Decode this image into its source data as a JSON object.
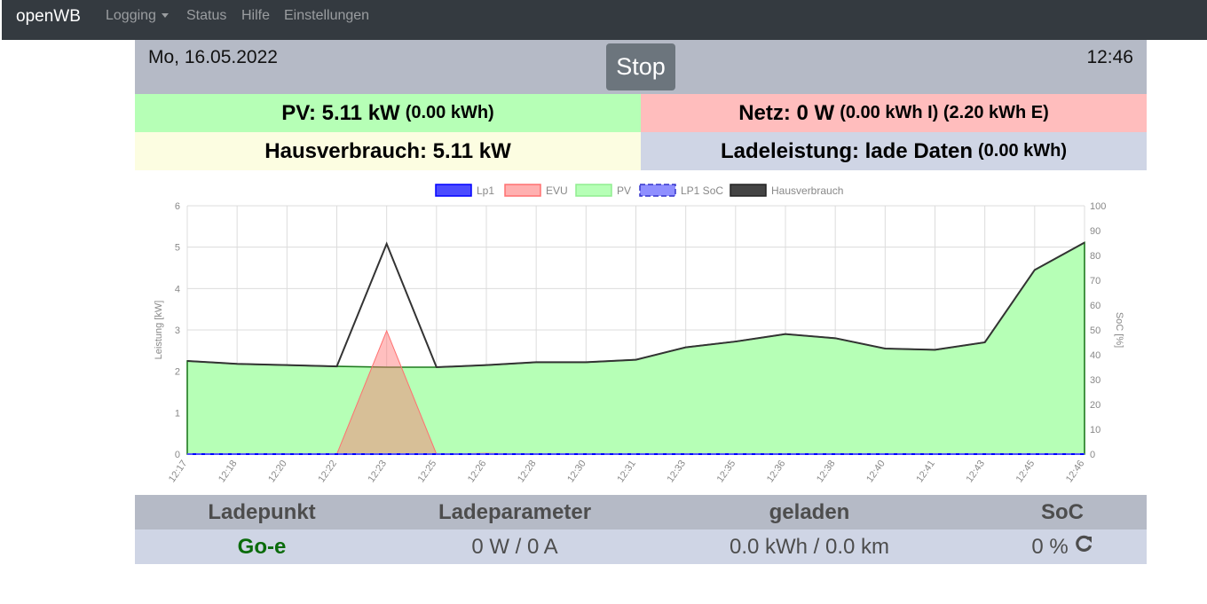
{
  "navbar": {
    "brand": "openWB",
    "items": [
      {
        "label": "Logging",
        "dropdown": true
      },
      {
        "label": "Status"
      },
      {
        "label": "Hilfe"
      },
      {
        "label": "Einstellungen"
      }
    ]
  },
  "header": {
    "date": "Mo, 16.05.2022",
    "time": "12:46",
    "stop_label": "Stop"
  },
  "summary": {
    "pv_main": "PV: 5.11 kW",
    "pv_sub": "(0.00 kWh)",
    "netz_main": "Netz: 0 W",
    "netz_sub": "(0.00 kWh I) (2.20 kWh E)",
    "haus_main": "Hausverbrauch: 5.11 kW",
    "lade_main": "Ladeleistung: lade Daten",
    "lade_sub": "(0.00 kWh)"
  },
  "chart_data": {
    "type": "area",
    "ylabel": "Leistung [kW]",
    "y2label": "SoC [%]",
    "ylim": [
      0,
      6
    ],
    "y2lim": [
      0,
      100
    ],
    "yticks": [
      "0",
      "1",
      "2",
      "3",
      "4",
      "5",
      "6"
    ],
    "y2ticks": [
      "0",
      "10",
      "20",
      "30",
      "40",
      "50",
      "60",
      "70",
      "80",
      "90",
      "100"
    ],
    "x_labels": [
      "12:17",
      "12:18",
      "12:20",
      "12:22",
      "12:23",
      "12:25",
      "12:26",
      "12:28",
      "12:30",
      "12:31",
      "12:33",
      "12:35",
      "12:36",
      "12:38",
      "12:40",
      "12:41",
      "12:43",
      "12:45",
      "12:46"
    ],
    "grid": true,
    "legend_position": "top",
    "colors": {
      "lp1": "#0000ff",
      "evu": "#ff7070",
      "pv": "#90ee90",
      "lp1soc": "#6a6aff",
      "haus": "#333333"
    },
    "series": [
      {
        "name": "Lp1",
        "values": [
          0,
          0,
          0,
          0,
          0,
          0,
          0,
          0,
          0,
          0,
          0,
          0,
          0,
          0,
          0,
          0,
          0,
          0,
          0
        ]
      },
      {
        "name": "EVU",
        "values": [
          0,
          0,
          0,
          0,
          2.98,
          0,
          0.02,
          0,
          0,
          0,
          0,
          0,
          0,
          0,
          0,
          0,
          0,
          0,
          0
        ]
      },
      {
        "name": "PV",
        "values": [
          2.25,
          2.18,
          2.15,
          2.12,
          2.1,
          2.1,
          2.15,
          2.22,
          2.22,
          2.28,
          2.58,
          2.72,
          2.9,
          2.8,
          2.55,
          2.52,
          2.7,
          4.45,
          5.11
        ]
      },
      {
        "name": "LP1 SoC",
        "values": [
          0,
          0,
          0,
          0,
          0,
          0,
          0,
          0,
          0,
          0,
          0,
          0,
          0,
          0,
          0,
          0,
          0,
          0,
          0
        ]
      },
      {
        "name": "Hausverbrauch",
        "values": [
          2.25,
          2.18,
          2.15,
          2.12,
          5.08,
          2.1,
          2.15,
          2.22,
          2.22,
          2.28,
          2.58,
          2.72,
          2.9,
          2.8,
          2.55,
          2.52,
          2.7,
          4.45,
          5.11
        ]
      }
    ]
  },
  "table": {
    "headers": [
      "Ladepunkt",
      "Ladeparameter",
      "geladen",
      "SoC"
    ],
    "row": {
      "name": "Go-e",
      "param": "0 W / 0 A",
      "geladen": "0.0 kWh / 0.0 km",
      "soc": "0 %"
    }
  }
}
